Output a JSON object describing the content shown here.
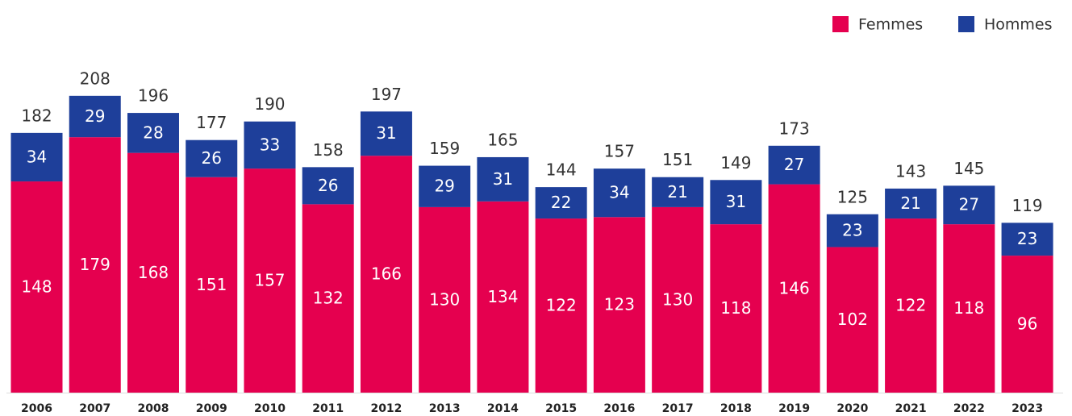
{
  "chart_data": {
    "type": "stacked_bar",
    "categories": [
      "2006",
      "2007",
      "2008",
      "2009",
      "2010",
      "2011",
      "2012",
      "2013",
      "2014",
      "2015",
      "2016",
      "2017",
      "2018",
      "2019",
      "2020",
      "2021",
      "2022",
      "2023"
    ],
    "series": [
      {
        "name": "Femmes",
        "color": "#e5004f",
        "values": [
          148,
          179,
          168,
          151,
          157,
          132,
          166,
          130,
          134,
          122,
          123,
          130,
          118,
          146,
          102,
          122,
          118,
          96
        ]
      },
      {
        "name": "Hommes",
        "color": "#1e3f9a",
        "values": [
          34,
          29,
          28,
          26,
          33,
          26,
          31,
          29,
          31,
          22,
          34,
          21,
          31,
          27,
          23,
          21,
          27,
          23
        ]
      }
    ],
    "totals": [
      182,
      208,
      196,
      177,
      190,
      158,
      197,
      159,
      165,
      144,
      157,
      151,
      149,
      173,
      125,
      143,
      145,
      119
    ],
    "ylim": [
      0,
      220
    ],
    "legend": "top-right"
  }
}
